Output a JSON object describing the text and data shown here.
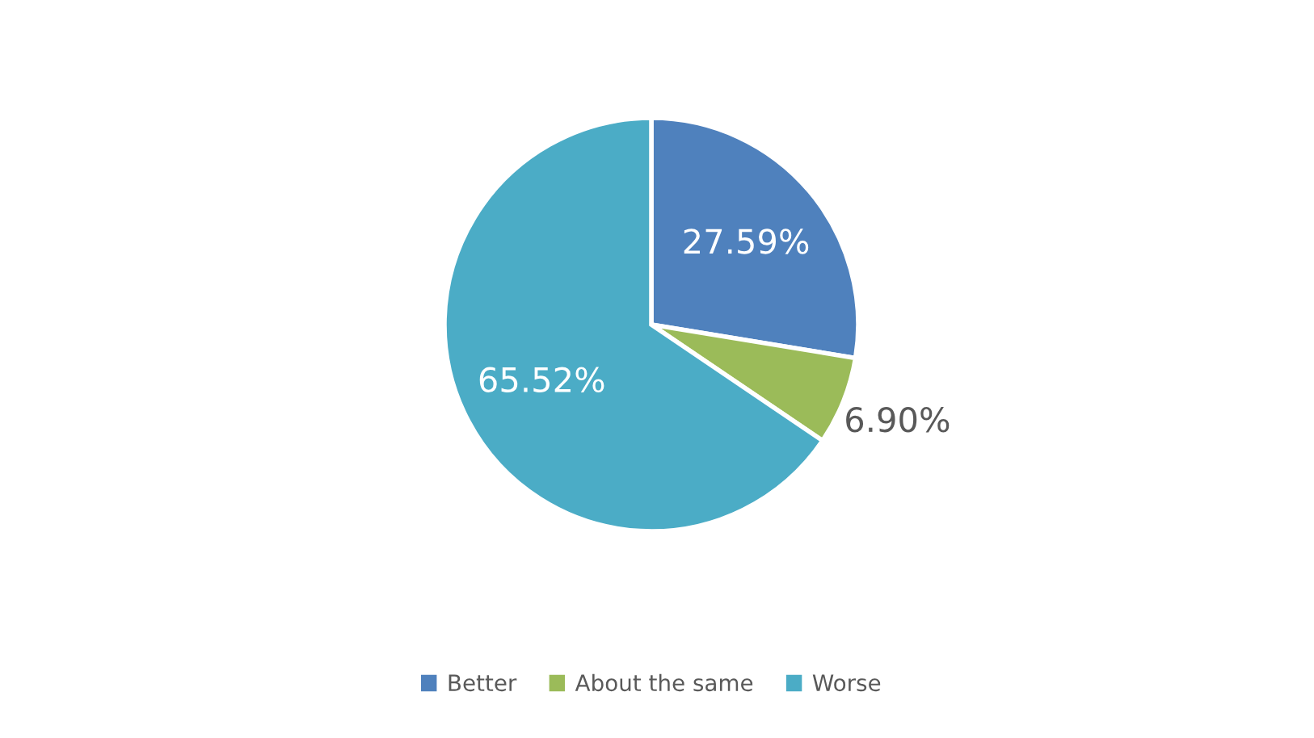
{
  "chart_data": {
    "type": "pie",
    "categories": [
      "Better",
      "About the same",
      "Worse"
    ],
    "values": [
      27.59,
      6.9,
      65.52
    ],
    "colors": [
      "#4f81bd",
      "#9bbb59",
      "#4bacc6"
    ],
    "value_labels": [
      "27.59%",
      "6.90%",
      "65.52%"
    ],
    "legend": "bottom"
  }
}
